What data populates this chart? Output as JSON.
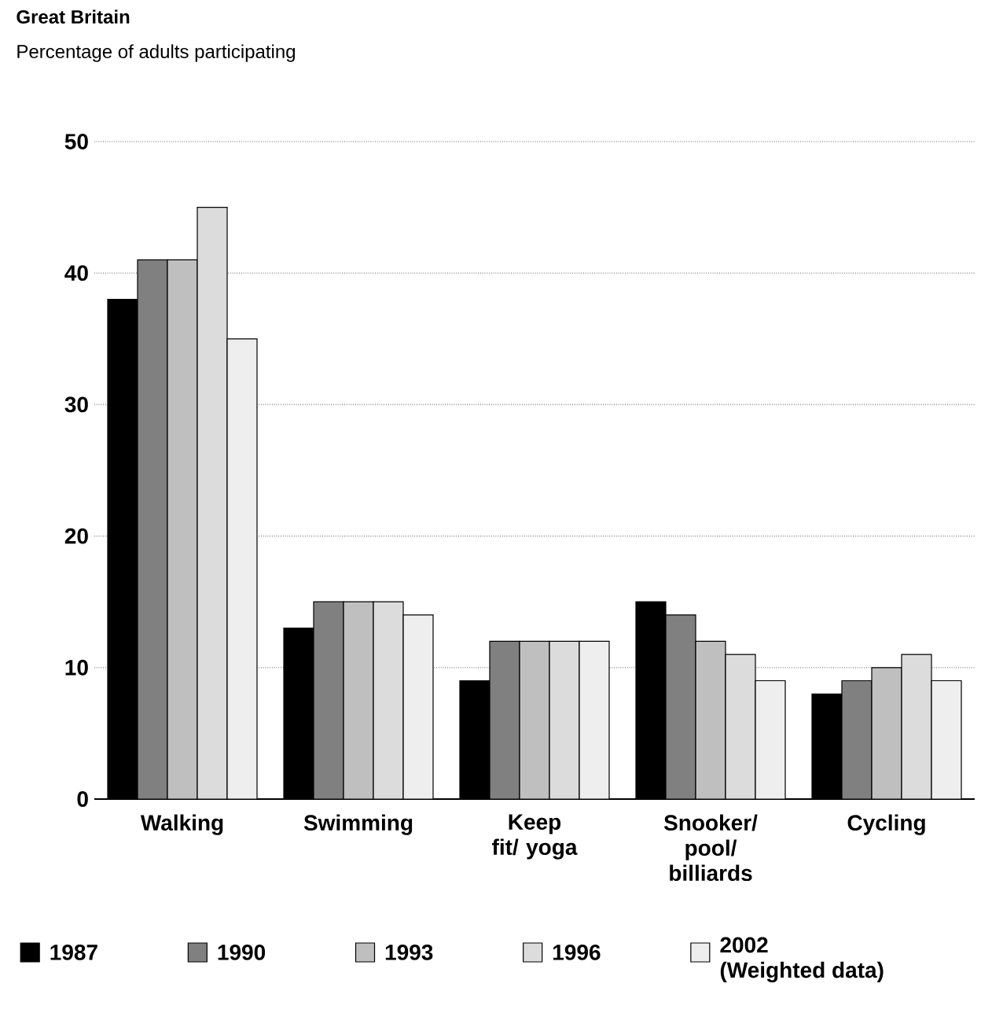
{
  "chart_data": {
    "type": "bar",
    "title": "Great Britain",
    "subtitle": "Percentage of adults participating",
    "categories": [
      "Walking",
      "Swimming",
      "Keep fit/ yoga",
      "Snooker/ pool/ billiards",
      "Cycling"
    ],
    "series": [
      {
        "name": "1987",
        "color": "#000000",
        "values": [
          38,
          13,
          9,
          15,
          8
        ]
      },
      {
        "name": "1990",
        "color": "#808080",
        "values": [
          41,
          15,
          12,
          14,
          9
        ]
      },
      {
        "name": "1993",
        "color": "#bfbfbf",
        "values": [
          41,
          15,
          12,
          12,
          10
        ]
      },
      {
        "name": "1996",
        "color": "#dcdcdc",
        "values": [
          45,
          15,
          12,
          11,
          11
        ]
      },
      {
        "name": "2002 (Weighted data)",
        "color": "#eeeeee",
        "values": [
          35,
          14,
          12,
          9,
          9
        ]
      }
    ],
    "ylim": [
      0,
      50
    ],
    "yticks": [
      0,
      10,
      20,
      30,
      40,
      50
    ],
    "grid": "y",
    "legend": "bottom"
  }
}
